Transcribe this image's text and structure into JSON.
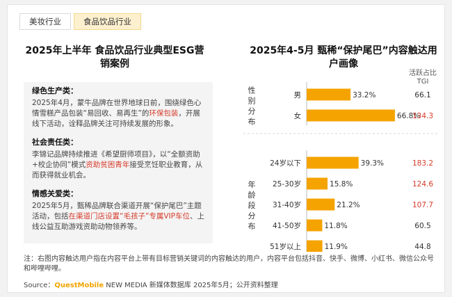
{
  "tabs": [
    {
      "label": "美妆行业",
      "active": false
    },
    {
      "label": "食品饮品行业",
      "active": true
    }
  ],
  "left_title": "2025年上半年 食品饮品行业典型ESG营销案例",
  "cases": [
    {
      "heading": "绿色生产类：",
      "parts": [
        {
          "t": "2025年4月，蒙牛品牌在世界地球日前，围绕绿色心情雪糕产品包装“易回收、易再生”的",
          "hl": false
        },
        {
          "t": "环保包装",
          "hl": true
        },
        {
          "t": "，开展线下活动，诠释品牌关注可持续发展的形象。",
          "hl": false
        }
      ]
    },
    {
      "heading": "社会责任类：",
      "parts": [
        {
          "t": "李锦记品牌持续推进《希望厨师项目》，以“全额资助+校企协同”模式",
          "hl": false
        },
        {
          "t": "资助贫困青年",
          "hl": true
        },
        {
          "t": "接受烹饪职业教育，从而获得就业机会。",
          "hl": false
        }
      ]
    },
    {
      "heading": "情感关爱类：",
      "parts": [
        {
          "t": "2025年5月，甄稀品牌联合渠道开展“保护尾巴”主题活动，包括",
          "hl": false
        },
        {
          "t": "在渠道门店设置“毛孩子”专属VIP车位",
          "hl": true
        },
        {
          "t": "、上线公益互助游戏资助动物领养等。",
          "hl": false
        }
      ]
    }
  ],
  "note": "注：右图内容触达用户指在内容平台上带有目标营销关键词的内容触达的用户，内容平台包括抖音、快手、微博、小红书、微信公众号和哔哩哔哩。",
  "source": {
    "prefix": "Source：",
    "brand": "QuestMobile",
    "rest": " NEW MEDIA 新媒体数据库 2025年5月；公开资料整理"
  },
  "colors": {
    "bar": "#f5a300",
    "highlight": "#d63a2a",
    "tab_active": "#fdf0cf"
  },
  "chart_data": {
    "type": "bar",
    "orientation": "horizontal",
    "title": "2025年4-5月 甄稀“保护尾巴”内容触达用户画像",
    "value_header": "活跃占比 TGI",
    "xlim": [
      0,
      100
    ],
    "groups": [
      {
        "label": "性别分布",
        "categories": [
          "男",
          "女"
        ],
        "values": [
          33.2,
          66.8
        ],
        "value_labels": [
          "33.2%",
          "66.8%"
        ],
        "tgi": [
          66.1,
          134.3
        ]
      },
      {
        "label": "年龄段分布",
        "categories": [
          "24岁以下",
          "25-30岁",
          "31-40岁",
          "41-50岁",
          "51岁以上"
        ],
        "values": [
          39.3,
          15.8,
          21.2,
          11.8,
          11.9
        ],
        "value_labels": [
          "39.3%",
          "15.8%",
          "21.2%",
          "11.8%",
          "11.9%"
        ],
        "tgi": [
          183.2,
          124.6,
          107.7,
          60.5,
          44.8
        ]
      }
    ],
    "tgi_highlight_threshold": 100
  }
}
